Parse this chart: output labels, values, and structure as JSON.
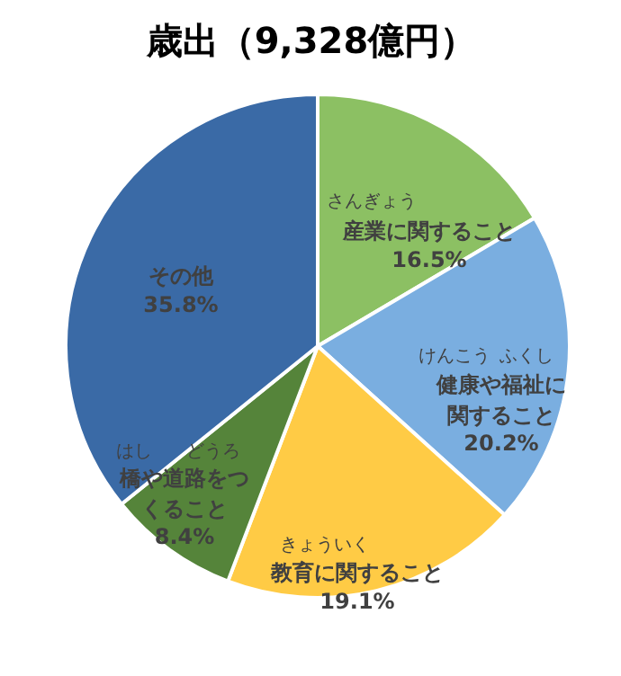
{
  "chart_data": {
    "type": "pie",
    "title": "歳出（9,328億円）",
    "categories": [
      "産業に関すること",
      "健康や福祉に関すること",
      "教育に関すること",
      "橋や道路をつくること",
      "その他"
    ],
    "values": [
      16.5,
      20.2,
      19.1,
      8.4,
      35.8
    ],
    "value_labels": [
      "16.5%",
      "20.2%",
      "19.1%",
      "8.4%",
      "35.8%"
    ],
    "colors": [
      "#8cc063",
      "#7aaee0",
      "#ffcb45",
      "#55843a",
      "#3a6aa6"
    ],
    "annotations": [
      "さんぎょう",
      "けんこう",
      "ふくし",
      "きょういく",
      "はし",
      "どうろ"
    ]
  }
}
